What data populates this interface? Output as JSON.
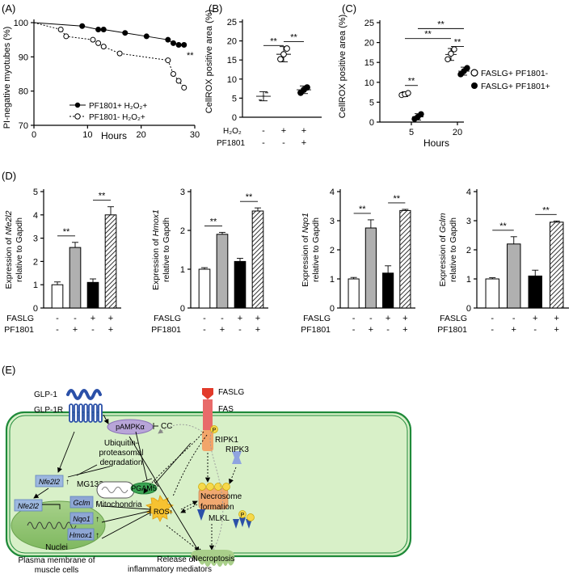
{
  "figure": {
    "panel_labels": [
      "(A)",
      "(B)",
      "(C)",
      "(D)",
      "(E)"
    ],
    "sig_mark": "**",
    "signs": {
      "minus": "-",
      "plus": "+"
    }
  },
  "chart_data": [
    {
      "id": "A",
      "type": "line",
      "xlabel": "Hours",
      "ylabel": "PI-negative myotubes (%)",
      "xlim": [
        0,
        30
      ],
      "ylim": [
        70,
        100
      ],
      "xticks": [
        "0",
        "10",
        "20",
        "30"
      ],
      "yticks": [
        "70",
        "80",
        "90",
        "100"
      ],
      "legend_position": "bottom-left",
      "annotation": "**",
      "series": [
        {
          "name": "PF1801+ H₂O₂+",
          "marker": "filled",
          "style": "solid",
          "x": [
            0,
            9,
            12,
            13,
            17,
            21,
            25,
            26,
            27,
            28
          ],
          "y": [
            100,
            99,
            98,
            98,
            97,
            96,
            95,
            94,
            93.5,
            93.5
          ]
        },
        {
          "name": "PF1801- H₂O₂+",
          "marker": "open",
          "style": "dotted",
          "x": [
            0,
            5,
            6,
            11,
            12,
            13,
            16,
            25,
            26,
            27,
            28
          ],
          "y": [
            100,
            98,
            96,
            95,
            94,
            93,
            91,
            89,
            85,
            83,
            81
          ]
        }
      ]
    },
    {
      "id": "B",
      "type": "scatter",
      "ylabel": "CellROX positive area (%)",
      "ylim": [
        0,
        25
      ],
      "yticks": [
        "0",
        "5",
        "10",
        "15",
        "20",
        "25"
      ],
      "row_labels": [
        "H₂O₂",
        "PF1801"
      ],
      "groups": [
        {
          "signs": [
            "-",
            "-"
          ],
          "mean": 5.5,
          "sd": 1.2,
          "points": [
            4.5,
            5.5,
            6.4
          ]
        },
        {
          "signs": [
            "+",
            "-"
          ],
          "mean": 16.5,
          "sd": 2.0,
          "points": [
            15.2,
            16.5,
            18.0
          ]
        },
        {
          "signs": [
            "+",
            "+"
          ],
          "mean": 7.2,
          "sd": 1.0,
          "points": [
            6.4,
            7.2,
            7.8
          ]
        }
      ],
      "comparisons": [
        {
          "from": 0,
          "to": 1,
          "label": "**"
        },
        {
          "from": 1,
          "to": 2,
          "label": "**"
        }
      ]
    },
    {
      "id": "C",
      "type": "scatter",
      "xlabel": "Hours",
      "ylabel": "CellROX positive area (%)",
      "ylim": [
        0,
        25
      ],
      "yticks": [
        "0",
        "5",
        "10",
        "15",
        "20",
        "25"
      ],
      "categories": [
        "5",
        "20"
      ],
      "series": [
        {
          "name": "FASLG+ PF1801-",
          "marker": "open",
          "means": [
            7,
            17
          ],
          "sds": [
            0.6,
            1.5
          ],
          "points": [
            [
              6.8,
              7.0,
              7.3
            ],
            [
              15.8,
              17.2,
              18.3
            ]
          ]
        },
        {
          "name": "FASLG+ PF1801+",
          "marker": "filled",
          "means": [
            1.3,
            12.8
          ],
          "sds": [
            0.8,
            1.0
          ],
          "points": [
            [
              0.8,
              1.3,
              2.0
            ],
            [
              12.0,
              12.8,
              13.6
            ]
          ]
        }
      ],
      "comparisons": [
        {
          "label": "**"
        },
        {
          "label": "**"
        },
        {
          "label": "**"
        },
        {
          "label": "**"
        }
      ]
    },
    {
      "id": "D1",
      "type": "bar",
      "gene": "Nfe2l2",
      "ylabel_pre": "Expression of ",
      "ylabel_post": "relative to Gapdh",
      "ylim": [
        0,
        5
      ],
      "yticks": [
        "0",
        "1",
        "2",
        "3",
        "4",
        "5"
      ],
      "values": [
        1.0,
        2.6,
        1.1,
        4.0
      ],
      "errors": [
        0.12,
        0.22,
        0.15,
        0.35
      ]
    },
    {
      "id": "D2",
      "type": "bar",
      "gene": "Hmox1",
      "ylabel_pre": "Expression of ",
      "ylabel_post": "relative to Gapdh",
      "ylim": [
        0,
        3
      ],
      "yticks": [
        "0",
        "1",
        "2",
        "3"
      ],
      "values": [
        1.0,
        1.9,
        1.2,
        2.5
      ],
      "errors": [
        0.04,
        0.05,
        0.08,
        0.08
      ]
    },
    {
      "id": "D3",
      "type": "bar",
      "gene": "Nqo1",
      "ylabel_pre": "Expression of ",
      "ylabel_post": "relative to Gapdh",
      "ylim": [
        0,
        4
      ],
      "yticks": [
        "0",
        "1",
        "2",
        "3",
        "4"
      ],
      "values": [
        1.0,
        2.75,
        1.2,
        3.35
      ],
      "errors": [
        0.05,
        0.28,
        0.25,
        0.04
      ]
    },
    {
      "id": "D4",
      "type": "bar",
      "gene": "Gclm",
      "ylabel_pre": "Expression of ",
      "ylabel_post": "relative to Gapdh",
      "ylim": [
        0,
        4
      ],
      "yticks": [
        "0",
        "1",
        "2",
        "3",
        "4"
      ],
      "values": [
        1.0,
        2.2,
        1.1,
        2.95
      ],
      "errors": [
        0.04,
        0.25,
        0.2,
        0.04
      ]
    }
  ],
  "bar_common": {
    "row_labels": [
      "FASLG",
      "PF1801"
    ],
    "conditions": [
      [
        "-",
        "-"
      ],
      [
        "-",
        "+"
      ],
      [
        "+",
        "-"
      ],
      [
        "+",
        "+"
      ]
    ],
    "fills": [
      "#ffffff",
      "#b0b0b0",
      "#000000",
      "hatch"
    ]
  },
  "diagram": {
    "glp1": "GLP-1",
    "glp1r": "GLP-1R",
    "pampk": "pAMPKα",
    "cc": "CC",
    "ups1": "Ubiquitin-",
    "ups2": "proteasomal",
    "ups3": "degradation",
    "mg132": "MG132",
    "nfe2l2_cyto": "Nfe2l2",
    "nfe2l2_nuc": "Nfe2l2",
    "gclm": "Gclm",
    "nqo1": "Nqo1",
    "hmox1": "Hmox1",
    "up_arrow": "↑",
    "nuclei": "Nuclei",
    "mitochondria": "Mitochondria",
    "pgam5": "PGAM5",
    "ros": "ROS↑",
    "faslg": "FASLG",
    "fas": "FAS",
    "ripk1": "RIPK1",
    "ripk3": "RIPK3",
    "p": "P",
    "necrosome1": "Necrosome",
    "necrosome2": "formation",
    "mlkl": "MLKL",
    "necroptosis": "Necroptosis",
    "membrane1": "Plasma membrane of",
    "membrane2": "muscle cells",
    "release1": "Release of",
    "release2": "inflammatory mediators"
  }
}
